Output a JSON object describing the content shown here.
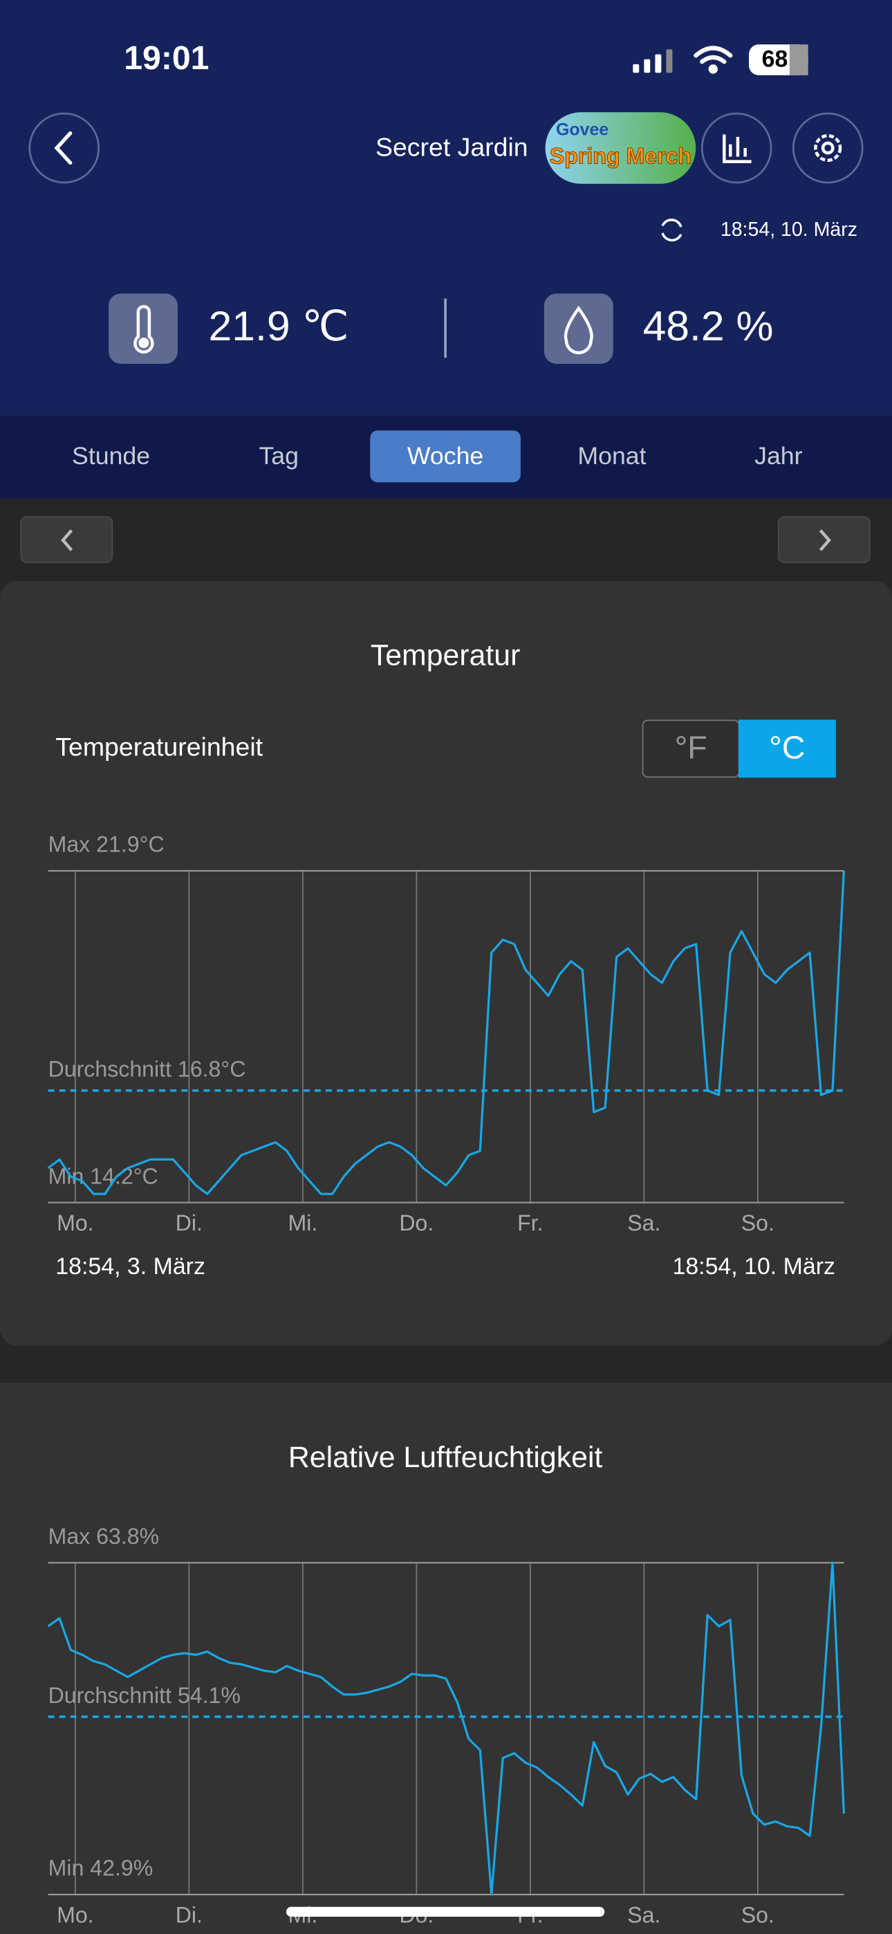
{
  "status_bar": {
    "time": "19:01",
    "battery": "68"
  },
  "header": {
    "title": "Secret Jardin",
    "badge": [
      "Govee",
      "Spring Merch"
    ],
    "last_sync": "18:54,  10. März"
  },
  "current": {
    "temperature": "21.9 ℃",
    "humidity": "48.2 %"
  },
  "tabs": [
    "Stunde",
    "Tag",
    "Woche",
    "Monat",
    "Jahr"
  ],
  "selected_tab": 2,
  "charts": [
    {
      "type": "line",
      "title": "Temperatur",
      "unit_label": "Temperatureinheit",
      "unit_options": [
        "°F",
        "°C"
      ],
      "selected_unit": 1,
      "categories": [
        "Mo.",
        "Di.",
        "Mi.",
        "Do.",
        "Fr.",
        "Sa.",
        "So."
      ],
      "ylim": [
        14.2,
        21.9
      ],
      "yticks": [
        {
          "value": 21.9,
          "label": "Max 21.9°C"
        },
        {
          "value": 14.2,
          "label": "Min 14.2°C"
        }
      ],
      "average": {
        "value": 16.8,
        "label": "Durchschnitt 16.8°C"
      },
      "series": [
        {
          "color": "#1aa7e6",
          "values": [
            15.0,
            15.2,
            14.8,
            14.7,
            14.4,
            14.4,
            14.8,
            15.0,
            15.1,
            15.2,
            15.2,
            15.2,
            14.9,
            14.6,
            14.4,
            14.7,
            15.0,
            15.3,
            15.4,
            15.5,
            15.6,
            15.4,
            15.0,
            14.7,
            14.4,
            14.4,
            14.8,
            15.1,
            15.3,
            15.5,
            15.6,
            15.5,
            15.3,
            15.0,
            14.8,
            14.6,
            14.9,
            15.3,
            15.4,
            20.0,
            20.3,
            20.2,
            19.6,
            19.3,
            19.0,
            19.5,
            19.8,
            19.6,
            16.3,
            16.4,
            19.9,
            20.1,
            19.8,
            19.5,
            19.3,
            19.8,
            20.1,
            20.2,
            16.8,
            16.7,
            20.0,
            20.5,
            20.0,
            19.5,
            19.3,
            19.6,
            19.8,
            20.0,
            16.7,
            16.8,
            21.9
          ]
        }
      ],
      "date_range": [
        "18:54,  3. März",
        "18:54,  10. März"
      ]
    },
    {
      "type": "line",
      "title": "Relative Luftfeuchtigkeit",
      "categories": [
        "Mo.",
        "Di.",
        "Mi.",
        "Do.",
        "Fr.",
        "Sa.",
        "So."
      ],
      "ylim": [
        42.9,
        63.8
      ],
      "yticks": [
        {
          "value": 63.8,
          "label": "Max 63.8%"
        },
        {
          "value": 42.9,
          "label": "Min 42.9%"
        }
      ],
      "average": {
        "value": 54.1,
        "label": "Durchschnitt 54.1%"
      },
      "series": [
        {
          "color": "#1aa7e6",
          "values": [
            59.8,
            60.3,
            58.3,
            58.0,
            57.6,
            57.4,
            57.0,
            56.6,
            57.0,
            57.4,
            57.8,
            58.0,
            58.1,
            58.0,
            58.2,
            57.8,
            57.5,
            57.4,
            57.2,
            57.0,
            56.9,
            57.3,
            57.0,
            56.8,
            56.6,
            56.0,
            55.5,
            55.5,
            55.6,
            55.8,
            56.0,
            56.3,
            56.8,
            56.7,
            56.7,
            56.5,
            55.0,
            52.7,
            52.0,
            42.9,
            51.5,
            51.8,
            51.2,
            50.9,
            50.3,
            49.8,
            49.2,
            48.5,
            52.5,
            51.0,
            50.6,
            49.2,
            50.2,
            50.5,
            50.0,
            50.3,
            49.5,
            48.9,
            60.5,
            59.8,
            60.2,
            50.4,
            48.0,
            47.3,
            47.5,
            47.2,
            47.1,
            46.6,
            53.5,
            63.8,
            48.0
          ]
        }
      ]
    }
  ]
}
